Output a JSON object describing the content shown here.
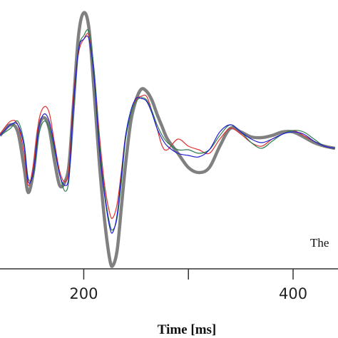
{
  "chart_data": {
    "type": "line",
    "x_label": "Time [ms]",
    "annotation": "The",
    "x": [
      120,
      130,
      137,
      143,
      147,
      152,
      157,
      162,
      167,
      172,
      177,
      182,
      186,
      190,
      195,
      200,
      205,
      210,
      215,
      220,
      225,
      228,
      232,
      236,
      240,
      245,
      250,
      255,
      260,
      265,
      270,
      275,
      280,
      290,
      300,
      310,
      320,
      330,
      340,
      350,
      360,
      370,
      380,
      390,
      400,
      410,
      420,
      430,
      440
    ],
    "series": [
      {
        "name": "gray",
        "color": "#808080",
        "width": 4.5,
        "values": [
          0,
          1.5,
          0.5,
          -4.5,
          -8,
          -5,
          1,
          2.5,
          1,
          -3.5,
          -7,
          -6.5,
          -4,
          4,
          14,
          17.2,
          15,
          6,
          -4,
          -12,
          -17.5,
          -18.2,
          -16,
          -10,
          -4,
          2,
          5,
          6.5,
          6.2,
          5,
          3,
          1.2,
          -0.5,
          -2.5,
          -4.5,
          -5.2,
          -4.5,
          -1.5,
          1,
          0.5,
          -0.2,
          -0.3,
          0,
          0.5,
          0.5,
          -0.2,
          -1,
          -1.5,
          -1.8
        ]
      },
      {
        "name": "red",
        "color": "#e03030",
        "width": 1.2,
        "values": [
          0.2,
          2,
          1.5,
          -2.5,
          -7,
          -4,
          2,
          4,
          3.2,
          -1,
          -5,
          -6.5,
          -4.5,
          5,
          11.5,
          13.5,
          14,
          9,
          0,
          -7,
          -11,
          -11.5,
          -9.5,
          -5,
          0,
          3,
          5,
          5.5,
          5.5,
          3.5,
          1,
          -1.5,
          -2,
          -0.5,
          -1.5,
          -2,
          -2.5,
          -0.5,
          1,
          0.2,
          -1,
          -1.5,
          -0.5,
          0.2,
          0.7,
          0,
          -0.8,
          -1.5,
          -1.8
        ]
      },
      {
        "name": "green",
        "color": "#2e7d4f",
        "width": 1.2,
        "values": [
          0,
          1,
          2,
          -1,
          -6,
          -5.5,
          0,
          2,
          1,
          -2,
          -5.5,
          -7.8,
          -6,
          3,
          12,
          14,
          14.5,
          9,
          -1,
          -8,
          -12.5,
          -13.2,
          -11.5,
          -6.5,
          -0.5,
          3,
          4.8,
          5.3,
          5,
          3.5,
          1.5,
          0,
          -1,
          -2,
          -2,
          -2.5,
          -2,
          0,
          1.5,
          0.5,
          -1,
          -1.8,
          -0.8,
          0.2,
          0.7,
          0.5,
          -0.5,
          -1.5,
          -1.8
        ]
      },
      {
        "name": "blue",
        "color": "#2020d0",
        "width": 1.2,
        "values": [
          0,
          1.5,
          1.5,
          -1.5,
          -6.5,
          -5,
          1,
          3,
          2,
          -1.5,
          -5.5,
          -7,
          -5.5,
          4,
          12,
          13.5,
          13.5,
          8,
          -2,
          -8.5,
          -13,
          -13.5,
          -11,
          -5.5,
          0,
          3.5,
          5.2,
          5.2,
          4.8,
          3.2,
          1,
          -0.5,
          -1.5,
          -2.5,
          -2.8,
          -3,
          -2,
          0.5,
          1.5,
          0.5,
          -0.5,
          -1,
          -0.5,
          0.2,
          0.5,
          0.2,
          -0.8,
          -1.5,
          -1.8
        ]
      }
    ],
    "xlim": [
      120,
      442.9
    ],
    "ylim": [
      -28.4,
      19
    ],
    "xticks": [
      200,
      400
    ],
    "minor_xticks": [
      300
    ]
  }
}
